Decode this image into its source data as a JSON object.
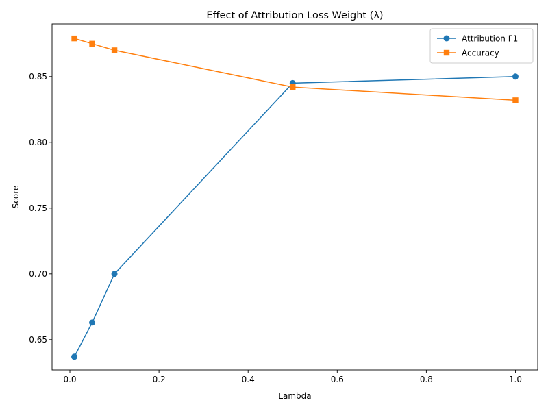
{
  "chart_data": {
    "type": "line",
    "title": "Effect of Attribution Loss Weight (λ)",
    "xlabel": "Lambda",
    "ylabel": "Score",
    "xlim": [
      -0.04,
      1.05
    ],
    "ylim": [
      0.627,
      0.89
    ],
    "xticks": [
      0.0,
      0.2,
      0.4,
      0.6,
      0.8,
      1.0
    ],
    "xtick_labels": [
      "0.0",
      "0.2",
      "0.4",
      "0.6",
      "0.8",
      "1.0"
    ],
    "yticks": [
      0.65,
      0.7,
      0.75,
      0.8,
      0.85
    ],
    "ytick_labels": [
      "0.65",
      "0.70",
      "0.75",
      "0.80",
      "0.85"
    ],
    "grid": false,
    "legend_position": "top-right",
    "series": [
      {
        "name": "Attribution F1",
        "color": "#1f77b4",
        "marker": "circle",
        "x": [
          0.01,
          0.05,
          0.1,
          0.5,
          1.0
        ],
        "y": [
          0.637,
          0.663,
          0.7,
          0.845,
          0.85
        ]
      },
      {
        "name": "Accuracy",
        "color": "#ff7f0e",
        "marker": "square",
        "x": [
          0.01,
          0.05,
          0.1,
          0.5,
          1.0
        ],
        "y": [
          0.879,
          0.875,
          0.87,
          0.842,
          0.832
        ]
      }
    ]
  }
}
